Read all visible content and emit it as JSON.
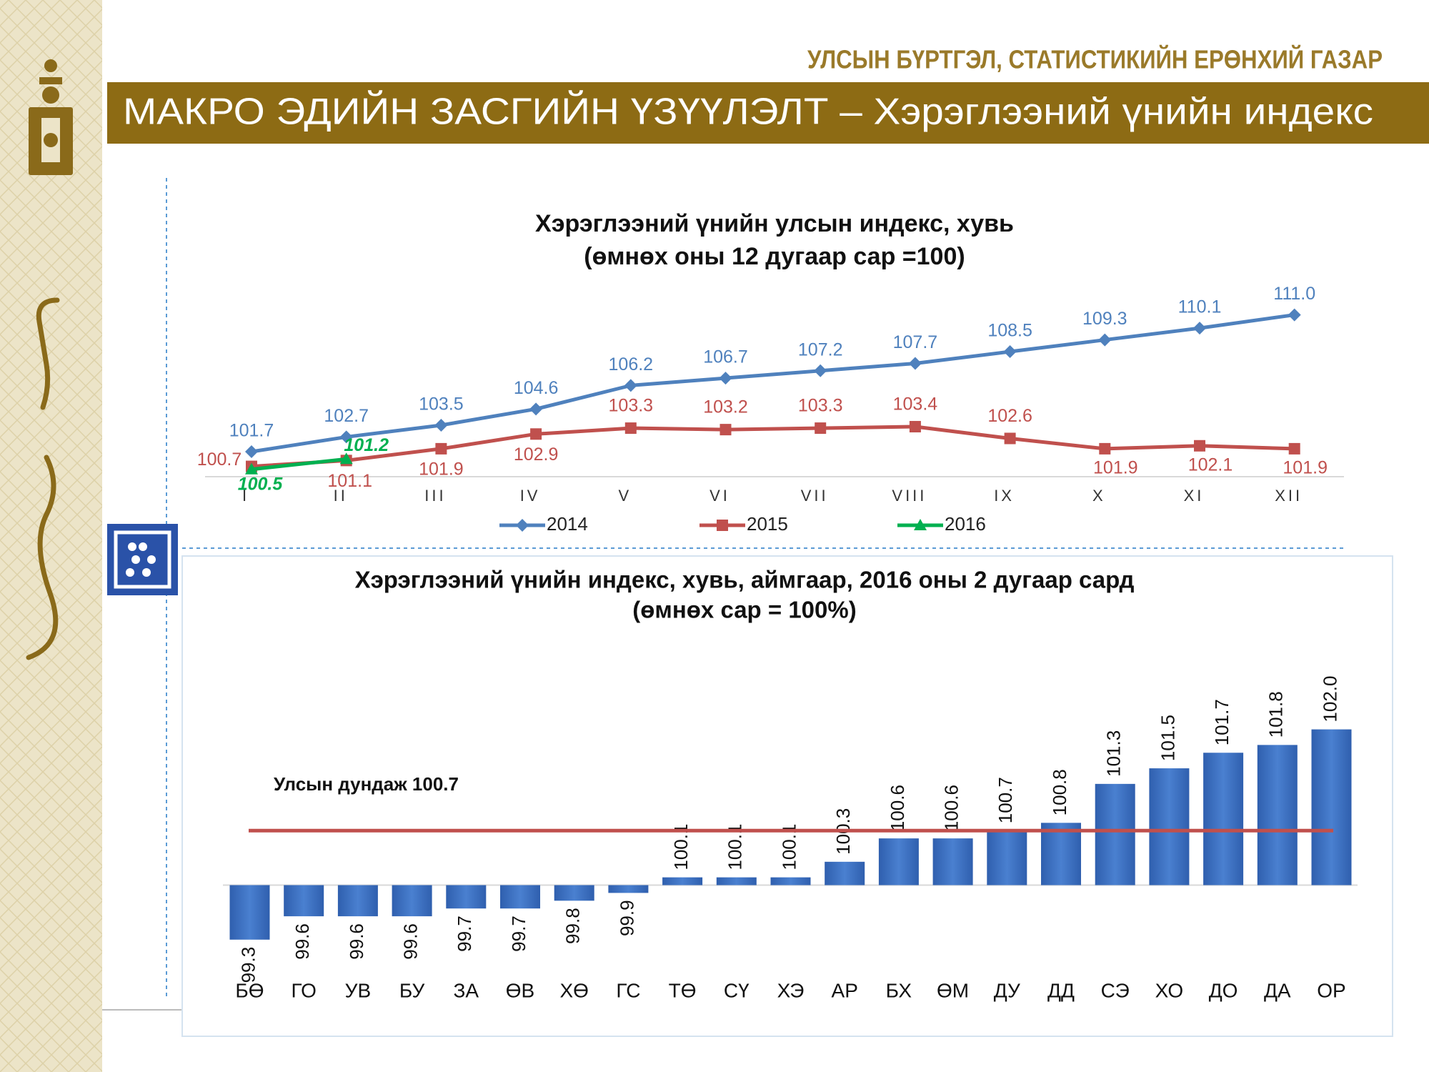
{
  "header": {
    "organization": "УЛСЫН БҮРТГЭЛ, СТАТИСТИКИЙН ЕРӨНХИЙ ГАЗАР",
    "title": "МАКРО ЭДИЙН ЗАСГИЙН ҮЗҮҮЛЭЛТ – Хэрэглээний үнийн индекс"
  },
  "chart_data": [
    {
      "type": "line",
      "title": "Хэрэглээний үнийн улсын индекс, хувь",
      "subtitle": "(өмнөх оны 12 дугаар сар =100)",
      "categories": [
        "I",
        "II",
        "III",
        "IV",
        "V",
        "VI",
        "VII",
        "VIII",
        "IX",
        "X",
        "XI",
        "XII"
      ],
      "ylim": [
        100,
        112
      ],
      "series": [
        {
          "name": "2014",
          "color": "#4f81bd",
          "marker": "diamond",
          "values": [
            101.7,
            102.7,
            103.5,
            104.6,
            106.2,
            106.7,
            107.2,
            107.7,
            108.5,
            109.3,
            110.1,
            111.0
          ],
          "value_labels": [
            "101.7",
            "102.7",
            "103.5",
            "104.6",
            "106.2",
            "106.7",
            "107.2",
            "107.7",
            "108.5",
            "109.3",
            "110.1",
            "111.0"
          ]
        },
        {
          "name": "2015",
          "color": "#c0504d",
          "marker": "square",
          "values": [
            100.7,
            101.1,
            101.9,
            102.9,
            103.3,
            103.2,
            103.3,
            103.4,
            102.6,
            101.9,
            102.1,
            101.9
          ],
          "value_labels": [
            "100.7",
            "101.1",
            "101.9",
            "102.9",
            "103.3",
            "103.2",
            "103.3",
            "103.4",
            "102.6",
            "101.9",
            "102.1",
            "101.9"
          ]
        },
        {
          "name": "2016",
          "color": "#00b050",
          "marker": "triangle",
          "values": [
            100.5,
            101.2,
            null,
            null,
            null,
            null,
            null,
            null,
            null,
            null,
            null,
            null
          ],
          "value_labels": [
            "100.5",
            "101.2",
            null,
            null,
            null,
            null,
            null,
            null,
            null,
            null,
            null,
            null
          ]
        }
      ],
      "legend": "bottom"
    },
    {
      "type": "bar",
      "title": "Хэрэглээний үнийн индекс, хувь, аймгаар, 2016 оны 2 дугаар сард",
      "subtitle": "(өмнөх сар = 100%)",
      "categories": [
        "БӨ",
        "ГО",
        "УВ",
        "БУ",
        "ЗА",
        "ӨВ",
        "ХӨ",
        "ГС",
        "ТӨ",
        "СҮ",
        "ХЭ",
        "АР",
        "БХ",
        "ӨМ",
        "ДУ",
        "ДД",
        "СЭ",
        "ХО",
        "ДО",
        "ДА",
        "ОР"
      ],
      "values": [
        99.3,
        99.6,
        99.6,
        99.6,
        99.7,
        99.7,
        99.8,
        99.9,
        100.1,
        100.1,
        100.1,
        100.3,
        100.6,
        100.6,
        100.7,
        100.8,
        101.3,
        101.5,
        101.7,
        101.8,
        102.0
      ],
      "value_labels": [
        "99.3",
        "99.6",
        "99.6",
        "99.6",
        "99.7",
        "99.7",
        "99.8",
        "99.9",
        "100.1",
        "100.1",
        "100.1",
        "100.3",
        "100.6",
        "100.6",
        "100.7",
        "100.8",
        "101.3",
        "101.5",
        "101.7",
        "101.8",
        "102.0"
      ],
      "color": "#3a6fc4",
      "baseline": 100,
      "ylim": [
        99.2,
        102.4
      ],
      "reference_line": {
        "label": "Улсын дундаж 100.7",
        "value": 100.7,
        "color": "#c0504d"
      }
    }
  ]
}
